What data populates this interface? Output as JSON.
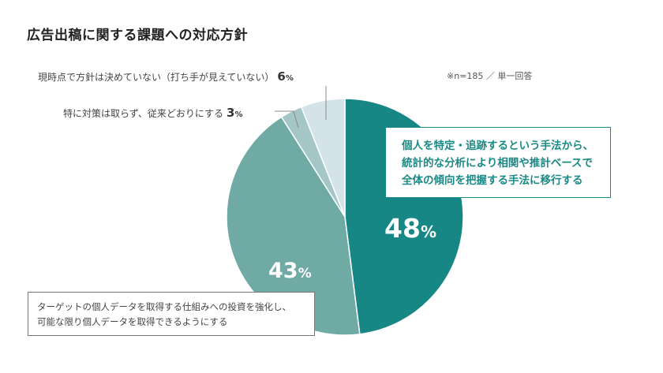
{
  "title": "広告出稿に関する課題への対応方針",
  "note": "※n=185 ／ 単一回答",
  "chart_data": {
    "type": "pie",
    "slices": [
      {
        "label": "個人を特定・追跡するという手法から、統計的な分析により相関や推計ベースで全体の傾向を把握する手法に移行する",
        "value": 48,
        "color": "#168784"
      },
      {
        "label": "ターゲットの個人データを取得する仕組みへの投資を強化し、可能な限り個人データを取得できるようにする",
        "value": 43,
        "color": "#6faaa5"
      },
      {
        "label": "特に対策は取らず、従来どおりにする",
        "value": 3,
        "color": "#a4c6c6"
      },
      {
        "label": "現時点で方針は決めていない（打ち手が見えていない）",
        "value": 6,
        "color": "#d3e3e7"
      }
    ]
  },
  "labels": {
    "s1_line1": "個人を特定・追跡するという手法から、",
    "s1_line2": "統計的な分析により相関や推計ベースで",
    "s1_line3": "全体の傾向を把握する手法に移行する",
    "s1_value": "48",
    "s2_line1": "ターゲットの個人データを取得する仕組みへの投資を強化し、",
    "s2_line2": "可能な限り個人データを取得できるようにする",
    "s2_value": "43",
    "s3_text": "特に対策は取らず、従来どおりにする",
    "s3_value": "3",
    "s4_text": "現時点で方針は決めていない（打ち手が見えていない）",
    "s4_value": "6",
    "pct_sign": "%"
  }
}
